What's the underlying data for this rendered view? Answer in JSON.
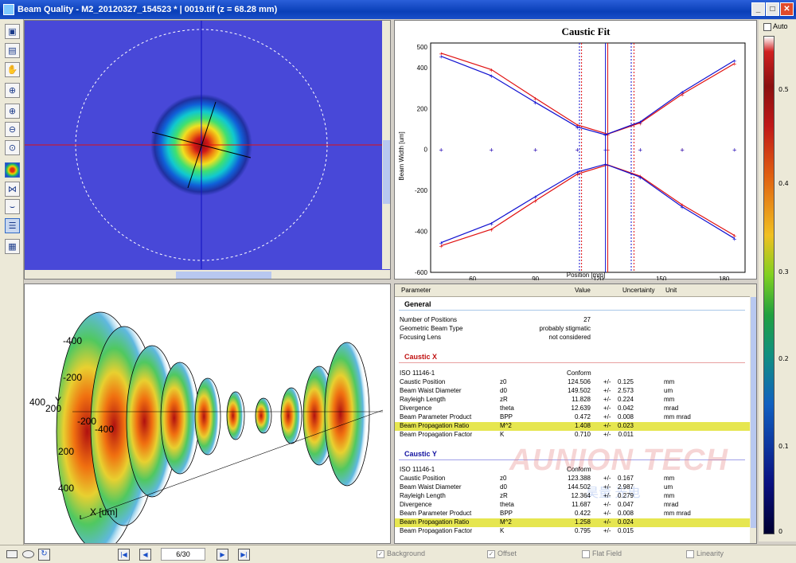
{
  "window": {
    "title": "Beam Quality - M2_20120327_154523 * | 0019.tif (z = 68.28 mm)",
    "minimize": "_",
    "maximize": "□",
    "close": "✕"
  },
  "toolbar": {
    "icons": [
      "save-icon",
      "save-as-icon",
      "hand-icon",
      "crosshair-icon",
      "zoom-in-icon",
      "zoom-out-icon",
      "zoom-fit-icon",
      "false-color-icon",
      "3d-view-icon",
      "caustic-icon",
      "table-icon",
      "report-icon"
    ]
  },
  "chart": {
    "title": "Caustic Fit",
    "xlabel": "Position [mm]",
    "ylabel": "Beam Width [um]",
    "xticks": [
      "60",
      "90",
      "120",
      "150",
      "180"
    ],
    "yticks": [
      "500",
      "400",
      "200",
      "0",
      "-200",
      "-400",
      "-600"
    ]
  },
  "chart_data": {
    "type": "line",
    "title": "Caustic Fit",
    "xlabel": "Position [mm]",
    "ylabel": "Beam Width [um]",
    "xlim": [
      40,
      190
    ],
    "ylim": [
      -600,
      520
    ],
    "series": [
      {
        "color": "#e01010",
        "x": [
          45,
          69,
          90,
          110,
          124.5,
          140,
          160,
          185
        ],
        "values": [
          470,
          390,
          250,
          120,
          75,
          130,
          270,
          420
        ]
      },
      {
        "color": "#1010d0",
        "x": [
          45,
          69,
          90,
          110,
          123.4,
          140,
          160,
          185
        ],
        "values": [
          455,
          360,
          230,
          110,
          72,
          135,
          280,
          435
        ]
      }
    ],
    "vlines": [
      111,
      112,
      123.4,
      124.5,
      135.7,
      137
    ]
  },
  "colorbar": {
    "auto_label": "Auto",
    "ticks": [
      "0.5",
      "0.4",
      "0.3",
      "0.2",
      "0.1",
      "0"
    ]
  },
  "view3d": {
    "axis_labels": [
      "-400",
      "-200",
      "400",
      "200",
      "-200",
      "-400",
      "200",
      "400"
    ],
    "y_label": "Y",
    "x_label": "X [um]"
  },
  "table": {
    "headers": [
      "Parameter",
      "Value",
      "Uncertainty",
      "Unit"
    ],
    "general": {
      "title": "General",
      "rows": [
        [
          "Number of Positions",
          "27"
        ],
        [
          "Geometric Beam Type",
          "probably stigmatic"
        ],
        [
          "Focusing Lens",
          "not considered"
        ]
      ]
    },
    "caustic_x": {
      "title": "Caustic X",
      "iso": [
        "ISO 11146-1",
        "Conform"
      ],
      "rows": [
        [
          "Caustic Position",
          "z0",
          "124.506",
          "+/-",
          "0.125",
          "mm"
        ],
        [
          "Beam Waist Diameter",
          "d0",
          "149.502",
          "+/-",
          "2.573",
          "um"
        ],
        [
          "Rayleigh Length",
          "zR",
          "11.828",
          "+/-",
          "0.224",
          "mm"
        ],
        [
          "Divergence",
          "theta",
          "12.639",
          "+/-",
          "0.042",
          "mrad"
        ],
        [
          "Beam Parameter Product",
          "BPP",
          "0.472",
          "+/-",
          "0.008",
          "mm mrad"
        ],
        [
          "Beam Propagation Ratio",
          "M^2",
          "1.408",
          "+/-",
          "0.023",
          ""
        ],
        [
          "Beam Propagation Factor",
          "K",
          "0.710",
          "+/-",
          "0.011",
          ""
        ]
      ]
    },
    "caustic_y": {
      "title": "Caustic Y",
      "iso": [
        "ISO 11146-1",
        "Conform"
      ],
      "rows": [
        [
          "Caustic Position",
          "z0",
          "123.388",
          "+/-",
          "0.167",
          "mm"
        ],
        [
          "Beam Waist Diameter",
          "d0",
          "144.502",
          "+/-",
          "2.987",
          "um"
        ],
        [
          "Rayleigh Length",
          "zR",
          "12.364",
          "+/-",
          "0.279",
          "mm"
        ],
        [
          "Divergence",
          "theta",
          "11.687",
          "+/-",
          "0.047",
          "mrad"
        ],
        [
          "Beam Parameter Product",
          "BPP",
          "0.422",
          "+/-",
          "0.008",
          "mm mrad"
        ],
        [
          "Beam Propagation Ratio",
          "M^2",
          "1.258",
          "+/-",
          "0.024",
          ""
        ],
        [
          "Beam Propagation Factor",
          "K",
          "0.795",
          "+/-",
          "0.015",
          ""
        ]
      ]
    }
  },
  "watermark": {
    "brand": "AUNION TECH",
    "sub": "昊量 光电"
  },
  "statusbar": {
    "page": "6/30",
    "background": "Background",
    "offset": "Offset",
    "flat_field": "Flat Field",
    "linearity": "Linearity"
  }
}
